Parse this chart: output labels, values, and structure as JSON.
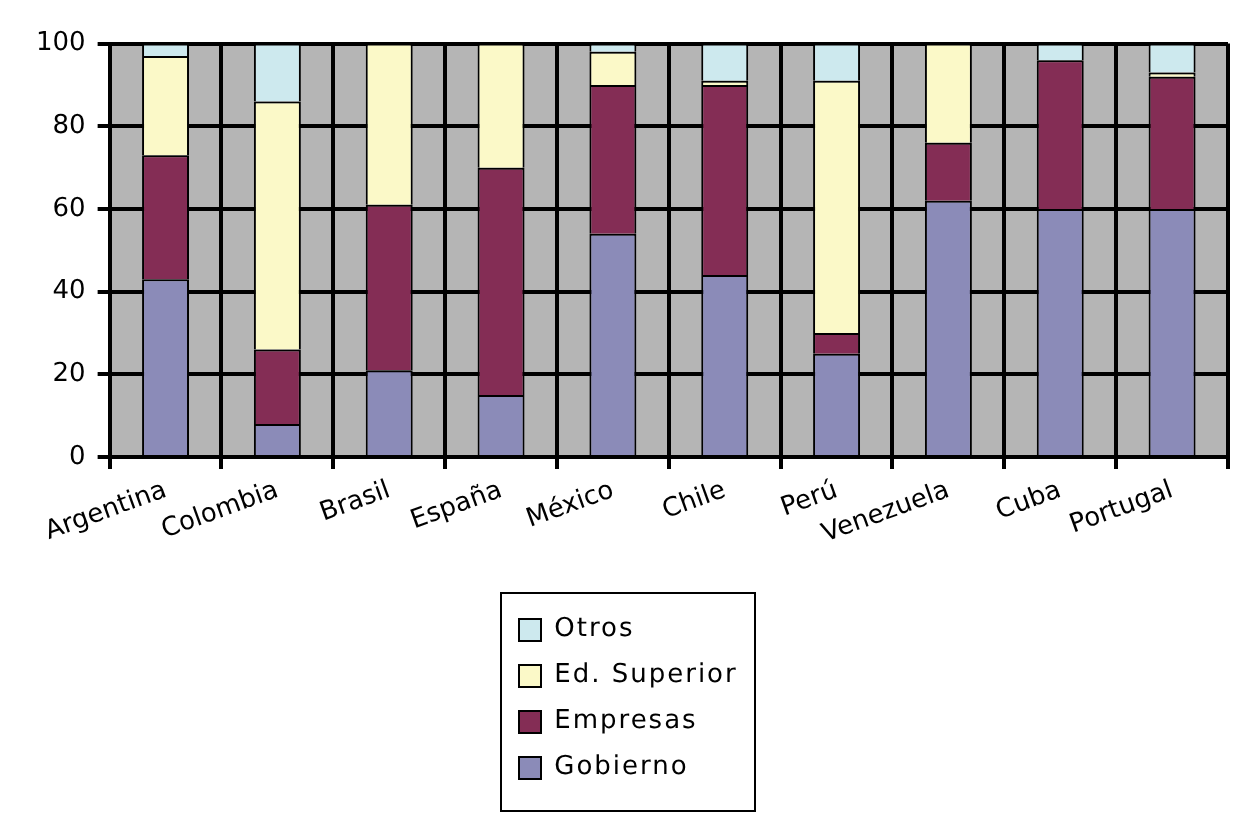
{
  "chart_data": {
    "type": "bar",
    "stacked": true,
    "categories": [
      "Argentina",
      "Colombia",
      "Brasil",
      "España",
      "México",
      "Chile",
      "Perú",
      "Venezuela",
      "Cuba",
      "Portugal"
    ],
    "series": [
      {
        "name": "Gobierno",
        "color": "#8b8bb8",
        "values": [
          43,
          8,
          21,
          15,
          54,
          44,
          25,
          62,
          60,
          60
        ]
      },
      {
        "name": "Empresas",
        "color": "#842d55",
        "values": [
          30,
          18,
          40,
          55,
          36,
          46,
          5,
          14,
          36,
          32
        ]
      },
      {
        "name": "Ed. Superior",
        "color": "#fbf9c8",
        "values": [
          24,
          60,
          39,
          30,
          8,
          1,
          61,
          24,
          0,
          1
        ]
      },
      {
        "name": "Otros",
        "color": "#cde9ee",
        "values": [
          3,
          14,
          0,
          0,
          2,
          9,
          9,
          0,
          4,
          7
        ]
      }
    ],
    "ylim": [
      0,
      100
    ],
    "yticks": [
      0,
      20,
      40,
      60,
      80,
      100
    ],
    "grid": true,
    "legend": "bottom"
  }
}
